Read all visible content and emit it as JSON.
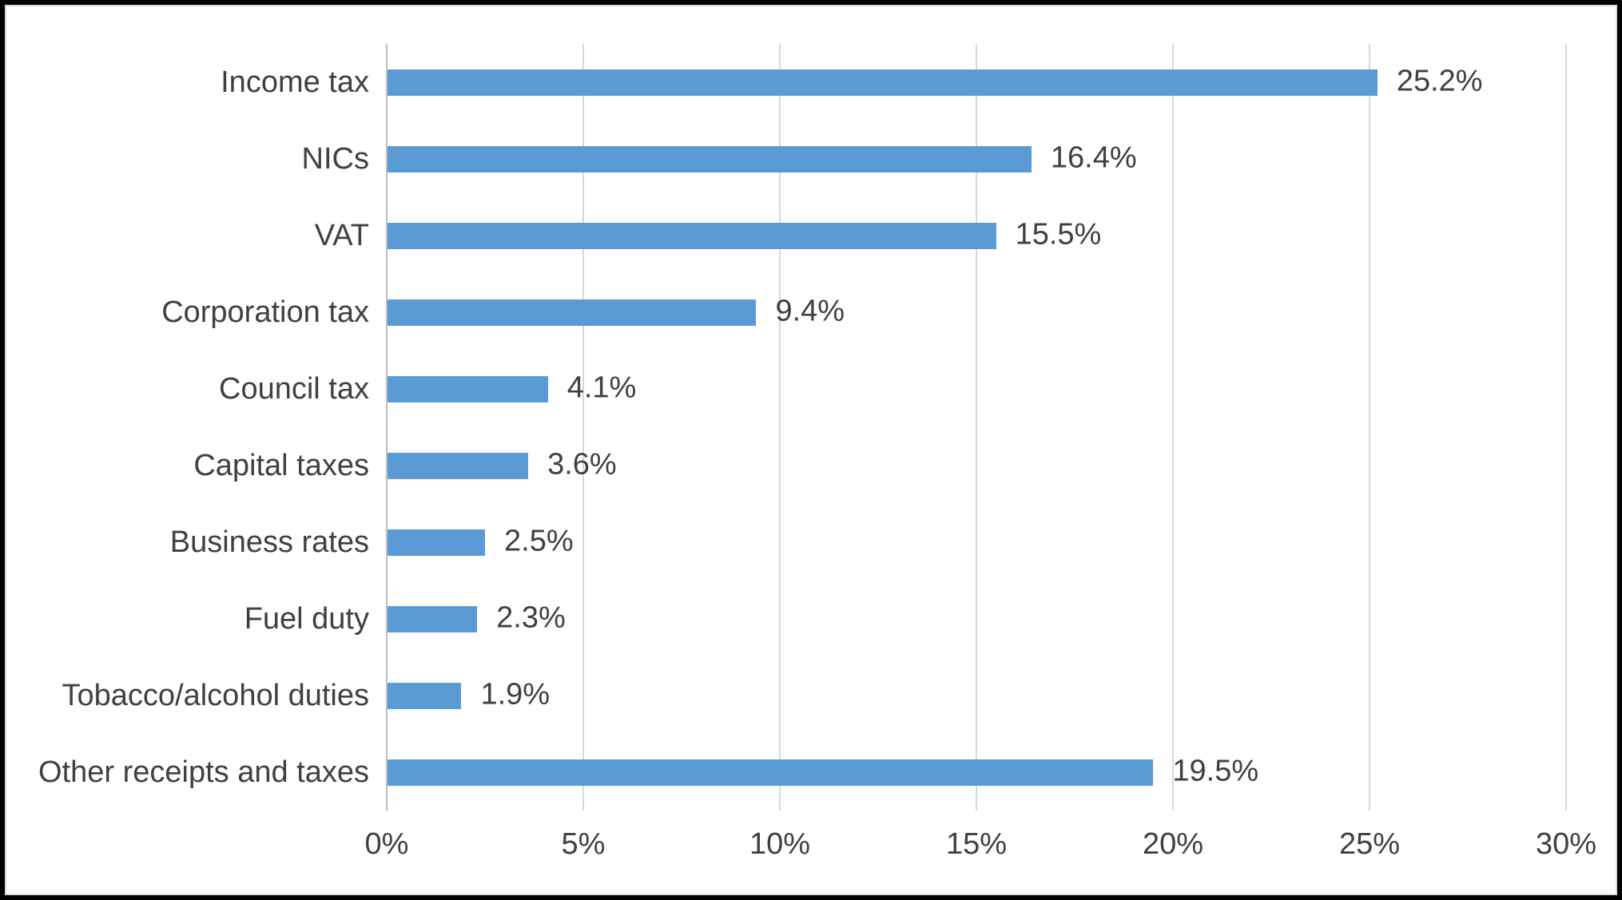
{
  "chart_data": {
    "type": "bar",
    "orientation": "horizontal",
    "title": "",
    "xlabel": "",
    "ylabel": "",
    "categories": [
      "Income tax",
      "NICs",
      "VAT",
      "Corporation tax",
      "Council tax",
      "Capital taxes",
      "Business rates",
      "Fuel duty",
      "Tobacco/alcohol duties",
      "Other receipts and taxes"
    ],
    "values": [
      25.2,
      16.4,
      15.5,
      9.4,
      4.1,
      3.6,
      2.5,
      2.3,
      1.9,
      19.5
    ],
    "data_labels": [
      "25.2%",
      "16.4%",
      "15.5%",
      "9.4%",
      "4.1%",
      "3.6%",
      "2.5%",
      "2.3%",
      "1.9%",
      "19.5%"
    ],
    "xlim": [
      0,
      30
    ],
    "x_tick_values": [
      0,
      5,
      10,
      15,
      20,
      25,
      30
    ],
    "x_tick_labels": [
      "0%",
      "5%",
      "10%",
      "15%",
      "20%",
      "25%",
      "30%"
    ],
    "grid": true,
    "legend": false,
    "colors": {
      "bar": "#5b9bd5",
      "gridline": "#d9d9d9",
      "axis_line": "#bfbfbf",
      "text": "#404040",
      "background": "#ffffff",
      "border": "#000000"
    }
  }
}
